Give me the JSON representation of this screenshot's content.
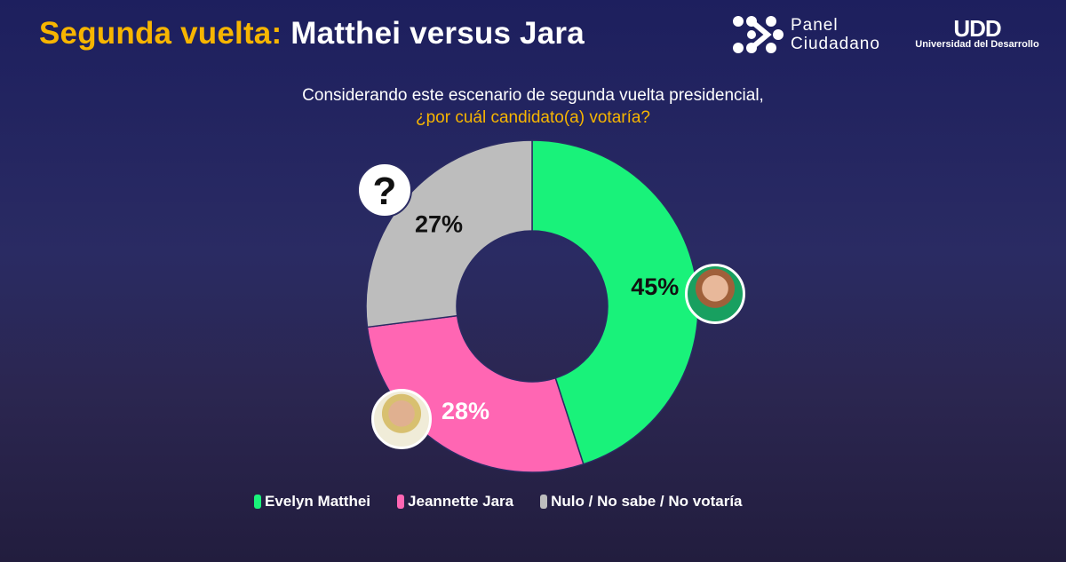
{
  "header": {
    "title_highlight": "Segunda vuelta:",
    "title_rest": " Matthei versus Jara"
  },
  "logos": {
    "panel_line1": "Panel",
    "panel_line2": "Ciudadano",
    "udd_mark": "UDD",
    "udd_name": "Universidad del Desarrollo"
  },
  "question": {
    "line1": "Considerando este escenario de segunda vuelta presidencial,",
    "line2": "¿por cuál candidato(a) votaría?"
  },
  "chart_data": {
    "type": "pie",
    "donut": true,
    "categories": [
      "Evelyn Matthei",
      "Jeannette Jara",
      "Nulo / No sabe / No votaría"
    ],
    "values": [
      45,
      28,
      27
    ],
    "labels": [
      "45%",
      "28%",
      "27%"
    ],
    "colors": [
      "#19f27a",
      "#ff66b3",
      "#bdbdbd"
    ],
    "legend_position": "bottom",
    "question_icon": "?"
  }
}
